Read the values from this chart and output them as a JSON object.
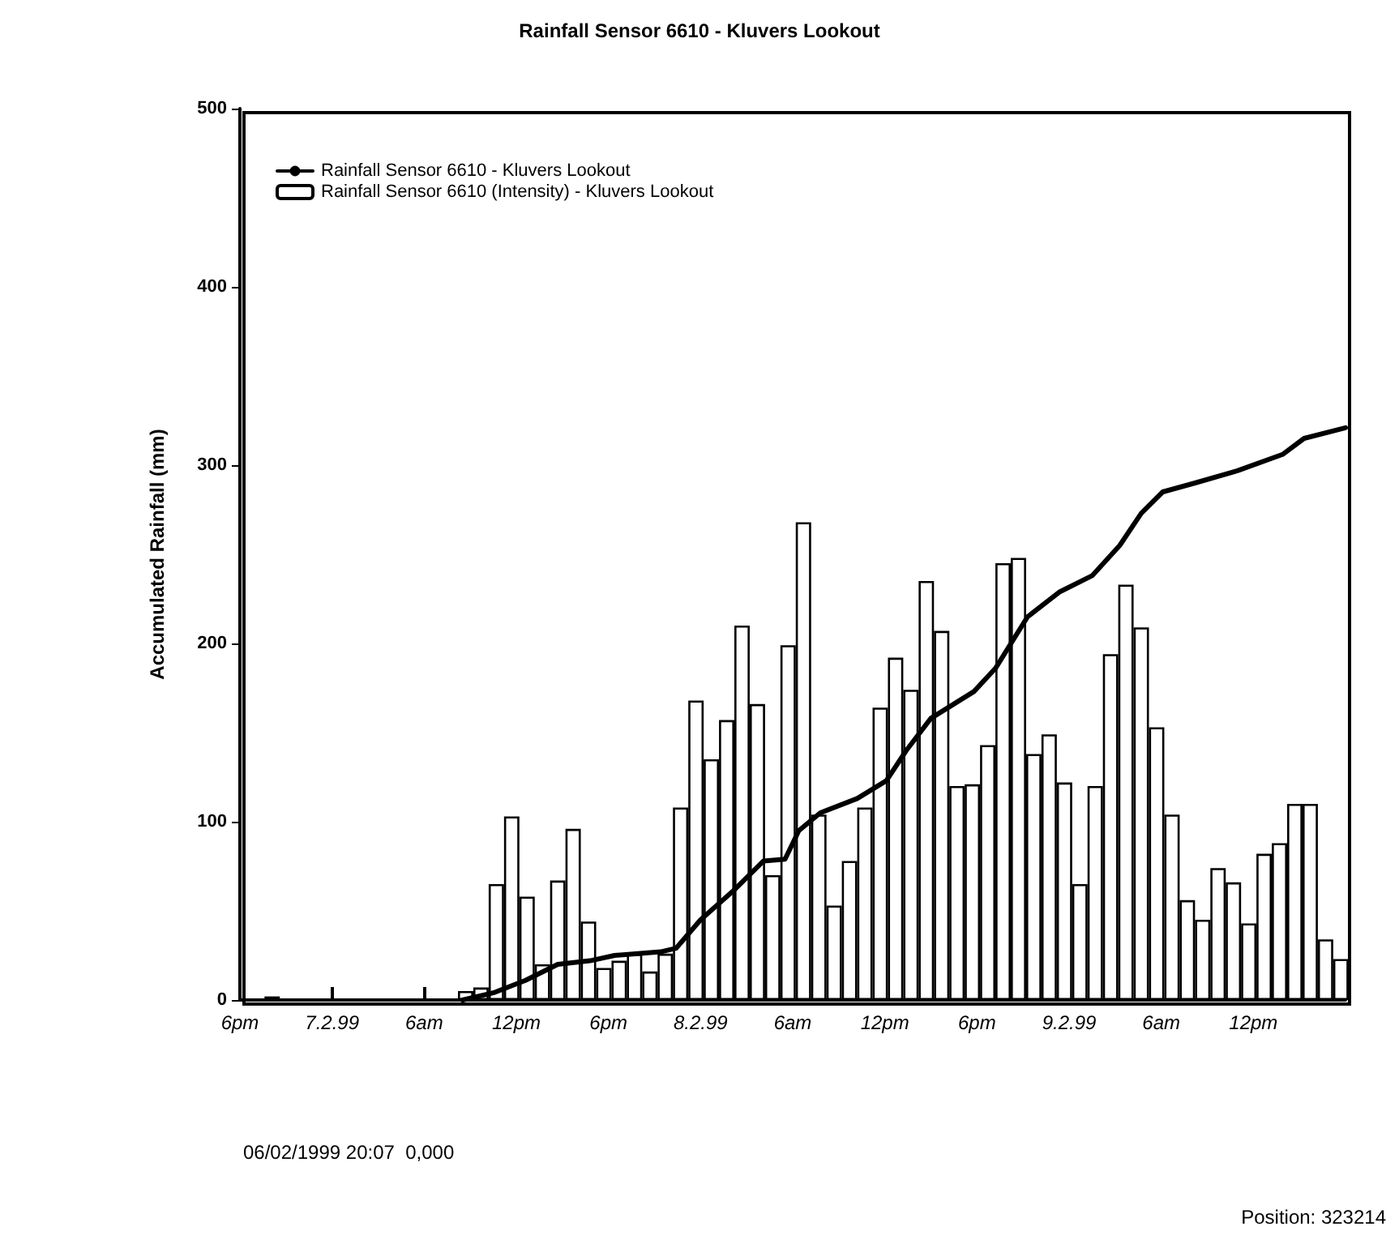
{
  "chart_data": {
    "type": "bar",
    "title": "Rainfall Sensor 6610 - Kluvers Lookout",
    "ylabel": "Accumulated Rainfall (mm)",
    "series": [
      {
        "name": "Rainfall Sensor 6610 - Kluvers Lookout",
        "type": "line",
        "color": "#000000",
        "x": [
          "1999-02-07T08:30",
          "1999-02-07T10:30",
          "1999-02-07T12:36",
          "1999-02-07T14:42",
          "1999-02-07T16:48",
          "1999-02-07T18:24",
          "1999-02-07T21:24",
          "1999-02-07T22:24",
          "1999-02-08T00:00",
          "1999-02-08T02:06",
          "1999-02-08T04:06",
          "1999-02-08T05:30",
          "1999-02-08T06:24",
          "1999-02-08T07:48",
          "1999-02-08T10:12",
          "1999-02-08T12:06",
          "1999-02-08T13:24",
          "1999-02-08T15:00",
          "1999-02-08T17:48",
          "1999-02-08T19:12",
          "1999-02-08T21:18",
          "1999-02-08T23:24",
          "1999-02-09T01:30",
          "1999-02-09T03:18",
          "1999-02-09T04:42",
          "1999-02-09T06:06",
          "1999-02-09T08:12",
          "1999-02-09T11:00",
          "1999-02-09T13:54",
          "1999-02-09T15:18",
          "1999-02-09T18:00"
        ],
        "values": [
          0,
          4,
          11,
          20,
          22,
          25,
          27,
          29,
          45,
          61,
          78,
          79,
          95,
          105,
          113,
          123,
          140,
          158,
          173,
          186,
          215,
          229,
          238,
          255,
          273,
          285,
          290,
          297,
          306,
          315,
          321
        ]
      },
      {
        "name": "Rainfall Sensor 6610 (Intensity) - Kluvers Lookout",
        "color": "#ffffff",
        "x": [
          "1999-02-06T20:06",
          "1999-02-07T08:42",
          "1999-02-07T09:42",
          "1999-02-07T10:42",
          "1999-02-07T11:42",
          "1999-02-07T12:42",
          "1999-02-07T13:42",
          "1999-02-07T14:42",
          "1999-02-07T15:42",
          "1999-02-07T16:42",
          "1999-02-07T17:42",
          "1999-02-07T18:42",
          "1999-02-07T19:42",
          "1999-02-07T20:42",
          "1999-02-07T21:42",
          "1999-02-07T22:42",
          "1999-02-07T23:42",
          "1999-02-08T00:42",
          "1999-02-08T01:42",
          "1999-02-08T02:42",
          "1999-02-08T03:42",
          "1999-02-08T04:42",
          "1999-02-08T05:42",
          "1999-02-08T06:42",
          "1999-02-08T07:42",
          "1999-02-08T08:42",
          "1999-02-08T09:42",
          "1999-02-08T10:42",
          "1999-02-08T11:42",
          "1999-02-08T12:42",
          "1999-02-08T13:42",
          "1999-02-08T14:42",
          "1999-02-08T15:42",
          "1999-02-08T16:42",
          "1999-02-08T17:42",
          "1999-02-08T18:42",
          "1999-02-08T19:42",
          "1999-02-08T20:42",
          "1999-02-08T21:42",
          "1999-02-08T22:42",
          "1999-02-08T23:42",
          "1999-02-09T00:42",
          "1999-02-09T01:42",
          "1999-02-09T02:42",
          "1999-02-09T03:42",
          "1999-02-09T04:42",
          "1999-02-09T05:42",
          "1999-02-09T06:42",
          "1999-02-09T07:42",
          "1999-02-09T08:42",
          "1999-02-09T09:42",
          "1999-02-09T10:42",
          "1999-02-09T11:42",
          "1999-02-09T12:42",
          "1999-02-09T13:42",
          "1999-02-09T14:42",
          "1999-02-09T15:42",
          "1999-02-09T16:42",
          "1999-02-09T17:42"
        ],
        "values": [
          2,
          5,
          7,
          65,
          103,
          58,
          20,
          67,
          96,
          44,
          18,
          22,
          26,
          16,
          26,
          108,
          168,
          135,
          157,
          210,
          166,
          70,
          199,
          268,
          104,
          53,
          78,
          108,
          164,
          192,
          174,
          235,
          207,
          120,
          121,
          143,
          245,
          248,
          138,
          149,
          122,
          65,
          120,
          194,
          233,
          209,
          153,
          104,
          56,
          45,
          74,
          66,
          43,
          82,
          88,
          110,
          110,
          34,
          23
        ]
      }
    ],
    "xlim": [
      "1999-02-06T18:00",
      "1999-02-09T18:00"
    ],
    "xticks": [
      {
        "value": "1999-02-06T18:00",
        "label": "6pm"
      },
      {
        "value": "1999-02-07T00:00",
        "label": "7.2.99"
      },
      {
        "value": "1999-02-07T06:00",
        "label": "6am"
      },
      {
        "value": "1999-02-07T12:00",
        "label": "12pm"
      },
      {
        "value": "1999-02-07T18:00",
        "label": "6pm"
      },
      {
        "value": "1999-02-08T00:00",
        "label": "8.2.99"
      },
      {
        "value": "1999-02-08T06:00",
        "label": "6am"
      },
      {
        "value": "1999-02-08T12:00",
        "label": "12pm"
      },
      {
        "value": "1999-02-08T18:00",
        "label": "6pm"
      },
      {
        "value": "1999-02-09T00:00",
        "label": "9.2.99"
      },
      {
        "value": "1999-02-09T06:00",
        "label": "6am"
      },
      {
        "value": "1999-02-09T12:00",
        "label": "12pm"
      }
    ],
    "ylim": [
      0,
      500
    ],
    "yticks": [
      0,
      100,
      200,
      300,
      400,
      500
    ],
    "grid": false,
    "legend": "top left",
    "marker": "none",
    "line_style": "solid",
    "annotations": [
      "06/02/1999 20:07  0,000",
      "Position: 323214"
    ]
  }
}
